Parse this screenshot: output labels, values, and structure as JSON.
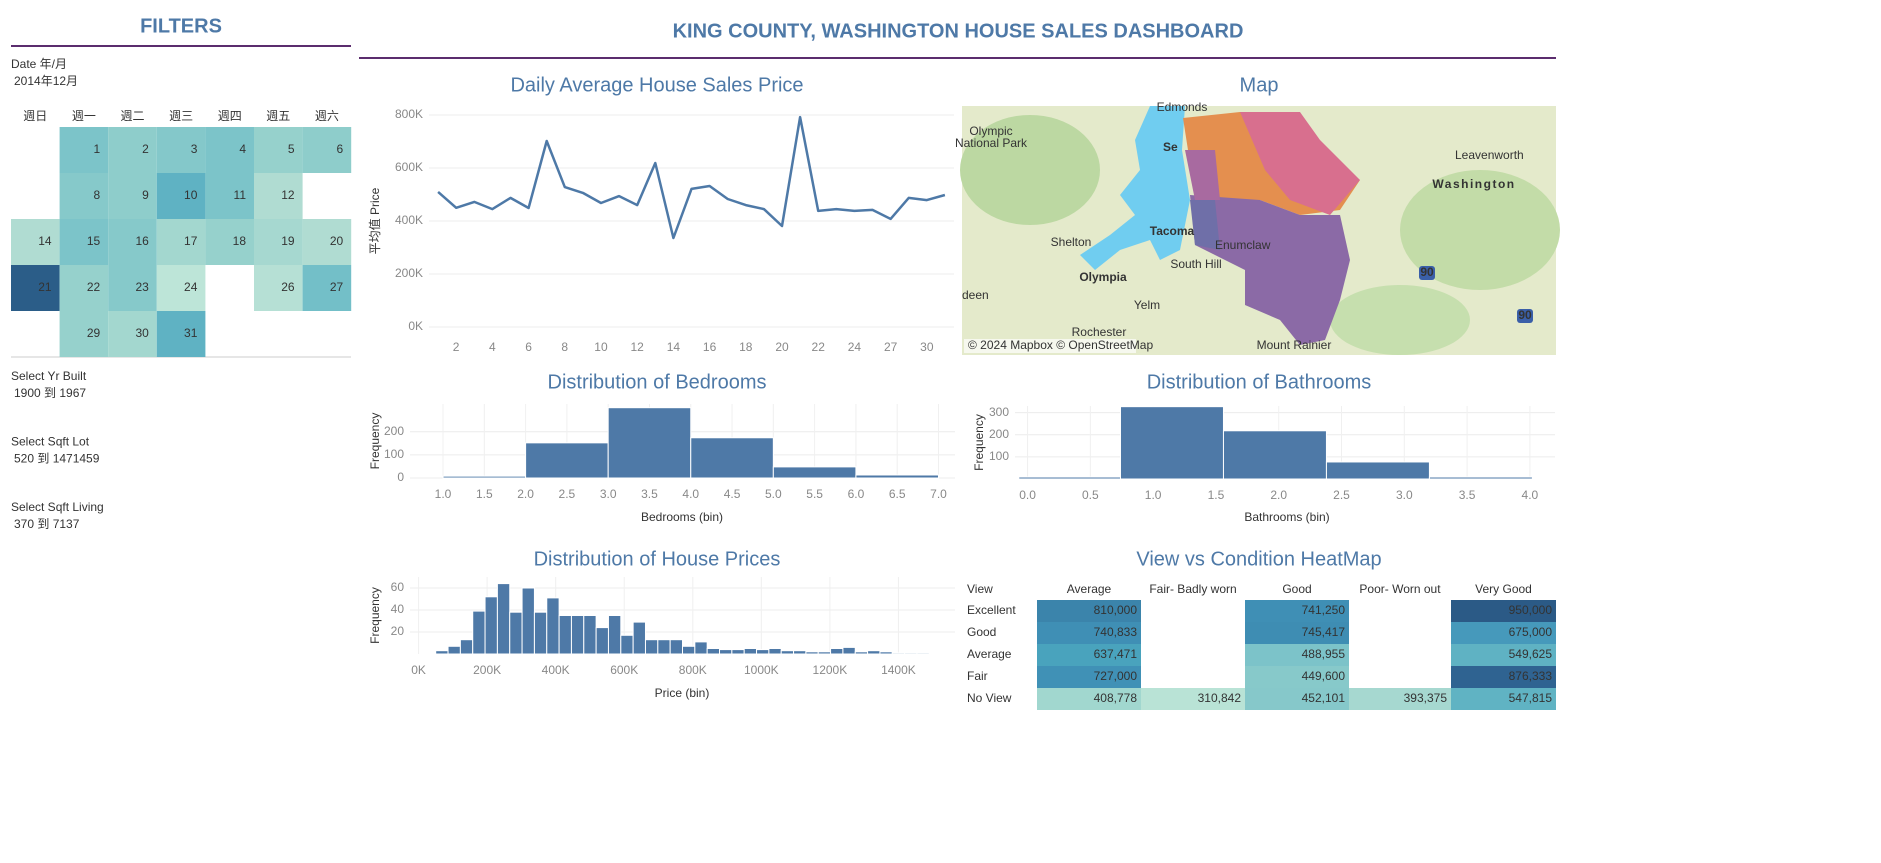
{
  "header": {
    "title": "KING COUNTY, WASHINGTON HOUSE SALES DASHBOARD"
  },
  "filters": {
    "title": "FILTERS",
    "date_label": "Date 年/月",
    "date_value": "2014年12月",
    "items": [
      {
        "label": "Select Yr Built",
        "value": "1900 到 1967"
      },
      {
        "label": "Select Sqft Lot",
        "value": "520 到 1471459"
      },
      {
        "label": "Select Sqft Living",
        "value": "370 到 7137"
      }
    ]
  },
  "calendar": {
    "weekdays": [
      "週日",
      "週一",
      "週二",
      "週三",
      "週四",
      "週五",
      "週六"
    ],
    "weeks": [
      [
        null,
        {
          "day": 1,
          "color": "#7cc4c9"
        },
        {
          "day": 2,
          "color": "#8ecdcb"
        },
        {
          "day": 3,
          "color": "#84c8ca"
        },
        {
          "day": 4,
          "color": "#7cc4c9"
        },
        {
          "day": 5,
          "color": "#96d1cc"
        },
        {
          "day": 6,
          "color": "#8ecdcb"
        }
      ],
      [
        null,
        {
          "day": 8,
          "color": "#86c9ca"
        },
        {
          "day": 9,
          "color": "#8ecdcb"
        },
        {
          "day": 10,
          "color": "#5fb2c3"
        },
        {
          "day": 11,
          "color": "#7cc4c9"
        },
        {
          "day": 12,
          "color": "#b0dcd2"
        },
        null
      ],
      [
        {
          "day": 14,
          "color": "#b0dcd2"
        },
        {
          "day": 15,
          "color": "#7cc4c9"
        },
        {
          "day": 16,
          "color": "#86c9ca"
        },
        {
          "day": 17,
          "color": "#a3d7cf"
        },
        {
          "day": 18,
          "color": "#96d1cc"
        },
        {
          "day": 19,
          "color": "#a6d8d0"
        },
        {
          "day": 20,
          "color": "#b0dcd2"
        }
      ],
      [
        {
          "day": 21,
          "color": "#2b5d88"
        },
        {
          "day": 22,
          "color": "#96d1cc"
        },
        {
          "day": 23,
          "color": "#86c9ca"
        },
        {
          "day": 24,
          "color": "#bde5d8"
        },
        null,
        {
          "day": 26,
          "color": "#b6e0d5"
        },
        {
          "day": 27,
          "color": "#73bfc8"
        }
      ],
      [
        null,
        {
          "day": 29,
          "color": "#96d1cc"
        },
        {
          "day": 30,
          "color": "#a3d7cf"
        },
        {
          "day": 31,
          "color": "#5fb2c3"
        },
        null,
        null,
        null
      ]
    ]
  },
  "chart_data": [
    {
      "type": "line",
      "title": "Daily Average House Sales Price",
      "ylabel": "平均值 Price",
      "categories": [
        null,
        "2",
        null,
        "4",
        null,
        "6",
        null,
        "8",
        null,
        "10",
        null,
        "12",
        null,
        "14",
        null,
        "16",
        null,
        "18",
        null,
        "20",
        null,
        "22",
        null,
        "24",
        null,
        "27",
        null,
        "30",
        null
      ],
      "values": [
        510000,
        450000,
        472000,
        445000,
        487000,
        449000,
        702000,
        528000,
        506000,
        468000,
        494000,
        460000,
        619000,
        336000,
        521000,
        532000,
        483000,
        460000,
        445000,
        381000,
        792000,
        438000,
        445000,
        438000,
        442000,
        408000,
        487000,
        479000,
        498000
      ],
      "color": "#4e79a7",
      "ylim": [
        0,
        800000
      ],
      "yticks": [
        {
          "value": 0,
          "label": "0K"
        },
        {
          "value": 200000,
          "label": "200K"
        },
        {
          "value": 400000,
          "label": "400K"
        },
        {
          "value": 600000,
          "label": "600K"
        },
        {
          "value": 800000,
          "label": "800K"
        }
      ],
      "grid": true
    },
    {
      "type": "histogram",
      "title": "Distribution of Bedrooms",
      "xlabel": "Bedrooms (bin)",
      "ylabel": "Frequency",
      "bins": [
        1,
        2,
        3,
        4,
        5,
        6,
        7
      ],
      "values": [
        8,
        152,
        304,
        174,
        48,
        13
      ],
      "color": "#4e79a7",
      "xlim": [
        0.6,
        7.2
      ],
      "xticks": [
        {
          "value": 1,
          "label": "1.0"
        },
        1.5,
        {
          "value": 2,
          "label": "2.0"
        },
        2.5,
        {
          "value": 3,
          "label": "3.0"
        },
        3.5,
        {
          "value": 4,
          "label": "4.0"
        },
        4.5,
        {
          "value": 5,
          "label": "5.0"
        },
        5.5,
        {
          "value": 6,
          "label": "6.0"
        },
        6.5,
        {
          "value": 7,
          "label": "7.0"
        }
      ],
      "ylim": [
        0,
        320
      ],
      "yticks": [
        0,
        100,
        200
      ],
      "grid": true
    },
    {
      "type": "histogram",
      "title": "Distribution of Bathrooms",
      "xlabel": "Bathrooms (bin)",
      "ylabel": "Frequency",
      "bins": [
        -0.07,
        0.74,
        1.56,
        2.38,
        3.2,
        4.02
      ],
      "values": [
        9,
        327,
        218,
        77,
        9
      ],
      "color": "#4e79a7",
      "xlim": [
        -0.1,
        4.2
      ],
      "xticks": [
        {
          "value": 0,
          "label": "0.0"
        },
        0.5,
        {
          "value": 1,
          "label": "1.0"
        },
        1.5,
        {
          "value": 2,
          "label": "2.0"
        },
        2.5,
        {
          "value": 3,
          "label": "3.0"
        },
        3.5,
        {
          "value": 4,
          "label": "4.0"
        }
      ],
      "ylim": [
        0,
        330
      ],
      "yticks": [
        100,
        200,
        300
      ],
      "grid": true
    },
    {
      "type": "histogram",
      "title": "Distribution of House Prices",
      "xlabel": "Price (bin)",
      "ylabel": "Frequency",
      "bins": [
        50000,
        86000,
        122000,
        158000,
        194000,
        230000,
        266000,
        302000,
        338000,
        374000,
        410000,
        446000,
        482000,
        518000,
        554000,
        590000,
        626000,
        662000,
        698000,
        734000,
        770000,
        806000,
        842000,
        878000,
        914000,
        950000,
        986000,
        1022000,
        1058000,
        1094000,
        1130000,
        1166000,
        1202000,
        1238000,
        1274000,
        1310000,
        1346000,
        1382000,
        1418000,
        1454000,
        1490000
      ],
      "values": [
        3,
        7,
        13,
        39,
        52,
        64,
        38,
        60,
        38,
        51,
        35,
        35,
        35,
        24,
        35,
        17,
        29,
        13,
        13,
        13,
        7,
        11,
        5,
        4,
        4,
        5,
        4,
        5,
        3,
        3,
        2,
        2,
        5,
        6,
        2,
        3,
        2,
        1,
        1,
        1
      ],
      "color": "#4e79a7",
      "xlim": [
        -25000,
        1565000
      ],
      "xticks": [
        {
          "value": 0,
          "label": "0K"
        },
        {
          "value": 200000,
          "label": "200K"
        },
        {
          "value": 400000,
          "label": "400K"
        },
        {
          "value": 600000,
          "label": "600K"
        },
        {
          "value": 800000,
          "label": "800K"
        },
        {
          "value": 1000000,
          "label": "1000K"
        },
        {
          "value": 1200000,
          "label": "1200K"
        },
        {
          "value": 1400000,
          "label": "1400K"
        }
      ],
      "ylim": [
        0,
        70
      ],
      "yticks": [
        20,
        40,
        60
      ],
      "grid": true
    }
  ],
  "map": {
    "title": "Map",
    "labels": [
      "Edmonds",
      "Olympic",
      "National Park",
      "Se",
      "Leavenworth",
      "Washington",
      "Shelton",
      "Tacoma",
      "Enumclaw",
      "South Hill",
      "Olympia",
      "deen",
      "Yelm",
      "Rochester",
      "Mount Rainier",
      "90",
      "90"
    ],
    "attribution": "© 2024 Mapbox © OpenStreetMap"
  },
  "heatmap": {
    "title": "View vs Condition HeatMap",
    "columns": [
      "View",
      "Average",
      "Fair- Badly worn",
      "Good",
      "Poor- Worn out",
      "Very Good"
    ],
    "rows": [
      {
        "label": "Excellent",
        "cells": [
          {
            "text": "810,000",
            "color": "#3b84ab"
          },
          null,
          {
            "text": "741,250",
            "color": "#3f8fb5"
          },
          null,
          {
            "text": "950,000",
            "color": "#2b5a86"
          }
        ]
      },
      {
        "label": "Good",
        "cells": [
          {
            "text": "740,833",
            "color": "#3f8fb5"
          },
          null,
          {
            "text": "745,417",
            "color": "#3e8db3"
          },
          null,
          {
            "text": "675,000",
            "color": "#4699bb"
          }
        ]
      },
      {
        "label": "Average",
        "cells": [
          {
            "text": "637,471",
            "color": "#49a3bd"
          },
          null,
          {
            "text": "488,955",
            "color": "#7cc3c9"
          },
          null,
          {
            "text": "549,625",
            "color": "#5fb2c3"
          }
        ]
      },
      {
        "label": "Fair",
        "cells": [
          {
            "text": "727,000",
            "color": "#4091b6"
          },
          null,
          {
            "text": "449,600",
            "color": "#87c9ca"
          },
          null,
          {
            "text": "876,333",
            "color": "#2f6391"
          }
        ]
      },
      {
        "label": "No View",
        "cells": [
          {
            "text": "408,778",
            "color": "#a1d7cf"
          },
          {
            "text": "310,842",
            "color": "#b9e3d6"
          },
          {
            "text": "452,101",
            "color": "#86c8ca"
          },
          {
            "text": "393,375",
            "color": "#a6d8d0"
          },
          {
            "text": "547,815",
            "color": "#60b3c3"
          }
        ]
      }
    ]
  }
}
